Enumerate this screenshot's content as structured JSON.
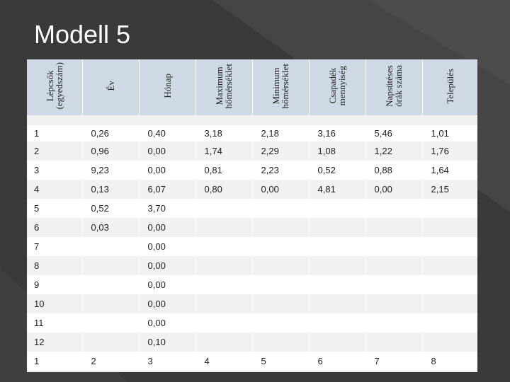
{
  "slide": {
    "title": "Modell 5",
    "background_color": "#3a3a3a",
    "header_fill": "#cfd9e6"
  },
  "table": {
    "headers": [
      "Lépcsők\n(egyedszám)",
      "Év",
      "Hónap",
      "Maximum\nhőmérséklet",
      "Minimum\nhőmérséklet",
      "Csapadék\nmennyiség",
      "Napsütéses\nórák száma",
      "Település"
    ],
    "rows": [
      [
        "1",
        "0,26",
        "0,40",
        "3,18",
        "2,18",
        "3,16",
        "5,46",
        "1,01"
      ],
      [
        "2",
        "0,96",
        "0,00",
        "1,74",
        "2,29",
        "1,08",
        "1,22",
        "1,76"
      ],
      [
        "3",
        "9,23",
        "0,00",
        "0,81",
        "2,23",
        "0,52",
        "0,88",
        "1,64"
      ],
      [
        "4",
        "0,13",
        "6,07",
        "0,80",
        "0,00",
        "4,81",
        "0,00",
        "2,15"
      ],
      [
        "5",
        "0,52",
        "3,70",
        "",
        "",
        "",
        "",
        ""
      ],
      [
        "6",
        "0,03",
        "0,00",
        "",
        "",
        "",
        "",
        ""
      ],
      [
        "7",
        "",
        "0,00",
        "",
        "",
        "",
        "",
        ""
      ],
      [
        "8",
        "",
        "0,00",
        "",
        "",
        "",
        "",
        ""
      ],
      [
        "9",
        "",
        "0,00",
        "",
        "",
        "",
        "",
        ""
      ],
      [
        "10",
        "",
        "0,00",
        "",
        "",
        "",
        "",
        ""
      ],
      [
        "11",
        "",
        "0,00",
        "",
        "",
        "",
        "",
        ""
      ],
      [
        "12",
        "",
        "0,10",
        "",
        "",
        "",
        "",
        ""
      ],
      [
        "1",
        "2",
        "3",
        "4",
        "5",
        "6",
        "7",
        "8"
      ]
    ]
  }
}
